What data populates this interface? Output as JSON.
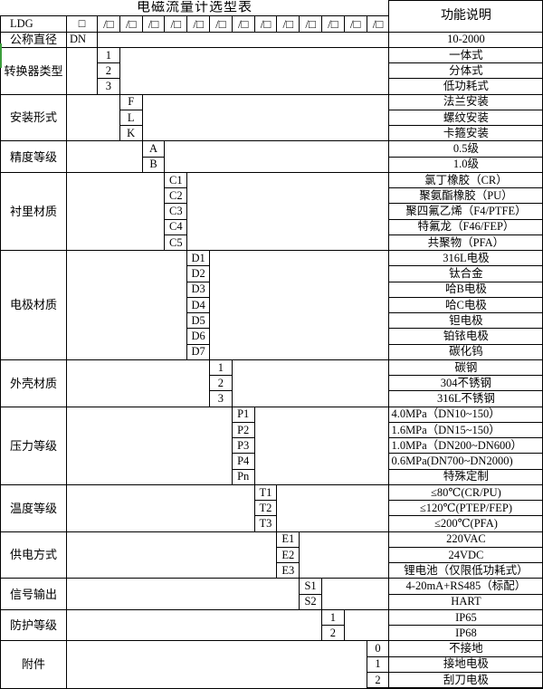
{
  "table": {
    "title": "电磁流量计选型表",
    "function_header": "功能说明",
    "model_prefix": "LDG",
    "box_symbol": "□",
    "slot_symbol": "/□",
    "diameter": {
      "category": "公称直径",
      "code": "DN",
      "desc": "10-2000"
    },
    "blocks": [
      {
        "category": "转换器类型",
        "options": [
          {
            "code": "1",
            "desc": "一体式"
          },
          {
            "code": "2",
            "desc": "分体式"
          },
          {
            "code": "3",
            "desc": "低功耗式"
          }
        ]
      },
      {
        "category": "安装形式",
        "options": [
          {
            "code": "F",
            "desc": "法兰安装"
          },
          {
            "code": "L",
            "desc": "螺纹安装"
          },
          {
            "code": "K",
            "desc": "卡箍安装"
          }
        ]
      },
      {
        "category": "精度等级",
        "options": [
          {
            "code": "A",
            "desc": "0.5级"
          },
          {
            "code": "B",
            "desc": "1.0级"
          }
        ]
      },
      {
        "category": "衬里材质",
        "options": [
          {
            "code": "C1",
            "desc": "氯丁橡胶（CR）"
          },
          {
            "code": "C2",
            "desc": "聚氨酯橡胶（PU）"
          },
          {
            "code": "C3",
            "desc": "聚四氟乙烯（F4/PTFE）"
          },
          {
            "code": "C4",
            "desc": "特氟龙（F46/FEP）"
          },
          {
            "code": "C5",
            "desc": "共聚物（PFA）"
          }
        ]
      },
      {
        "category": "电极材质",
        "options": [
          {
            "code": "D1",
            "desc": "316L电极"
          },
          {
            "code": "D2",
            "desc": "钛合金"
          },
          {
            "code": "D3",
            "desc": "哈B电极"
          },
          {
            "code": "D4",
            "desc": "哈C电极"
          },
          {
            "code": "D5",
            "desc": "钽电极"
          },
          {
            "code": "D6",
            "desc": "铂铱电极"
          },
          {
            "code": "D7",
            "desc": "碳化钨"
          }
        ]
      },
      {
        "category": "外壳材质",
        "options": [
          {
            "code": "1",
            "desc": "碳钢"
          },
          {
            "code": "2",
            "desc": "304不锈钢"
          },
          {
            "code": "3",
            "desc": "316L不锈钢"
          }
        ]
      },
      {
        "category": "压力等级",
        "options": [
          {
            "code": "P1",
            "desc": "4.0MPa（DN10~150）"
          },
          {
            "code": "P2",
            "desc": "1.6MPa（DN15~150）"
          },
          {
            "code": "P3",
            "desc": "1.0MPa（DN200~DN600）"
          },
          {
            "code": "P4",
            "desc": "0.6MPa(DN700~DN2000)"
          },
          {
            "code": "Pn",
            "desc": "特殊定制"
          }
        ]
      },
      {
        "category": "温度等级",
        "options": [
          {
            "code": "T1",
            "desc": "≤80℃(CR/PU)"
          },
          {
            "code": "T2",
            "desc": "≤120℃(PTEP/FEP)"
          },
          {
            "code": "T3",
            "desc": "≤200℃(PFA)"
          }
        ]
      },
      {
        "category": "供电方式",
        "options": [
          {
            "code": "E1",
            "desc": "220VAC"
          },
          {
            "code": "E2",
            "desc": "24VDC"
          },
          {
            "code": "E3",
            "desc": "锂电池（仅限低功耗式）"
          }
        ]
      },
      {
        "category": "信号输出",
        "options": [
          {
            "code": "S1",
            "desc": "4-20mA+RS485（标配）"
          },
          {
            "code": "S2",
            "desc": "HART"
          }
        ]
      },
      {
        "category": "防护等级",
        "options": [
          {
            "code": "1",
            "desc": "IP65"
          },
          {
            "code": "2",
            "desc": "IP68"
          }
        ]
      },
      {
        "category": "附件",
        "options": [
          {
            "code": "0",
            "desc": "不接地"
          },
          {
            "code": "1",
            "desc": "接地电极"
          },
          {
            "code": "2",
            "desc": "刮刀电极"
          }
        ]
      }
    ]
  }
}
